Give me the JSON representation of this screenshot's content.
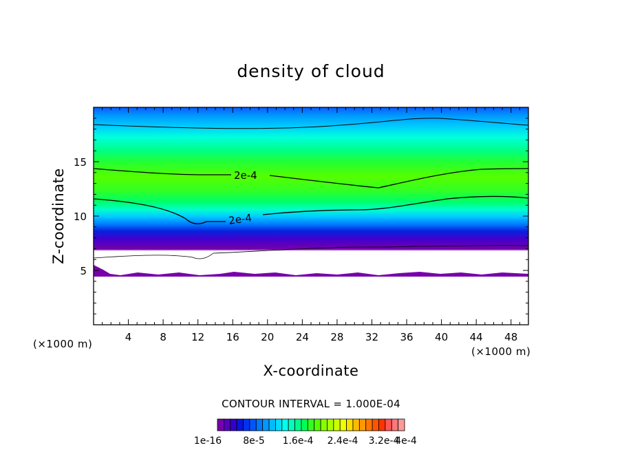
{
  "chart_data": {
    "type": "heatmap",
    "title": "density of cloud",
    "xlabel": "X-coordinate",
    "ylabel": "Z-coordinate",
    "x_unit": "(×1000 m)",
    "y_unit": "(×1000 m)",
    "xlim": [
      0,
      50
    ],
    "ylim": [
      0,
      20
    ],
    "x_ticks": [
      "4",
      "8",
      "12",
      "16",
      "20",
      "24",
      "28",
      "32",
      "36",
      "40",
      "44",
      "48"
    ],
    "y_ticks": [
      "5",
      "10",
      "15"
    ],
    "contour_interval_text": "CONTOUR INTERVAL = 1.000E-04",
    "colorbar": {
      "labels": [
        "1e-16",
        "8e-5",
        "1.6e-4",
        "2.4e-4",
        "3.2e-4",
        "4e-4"
      ],
      "colors": [
        "#7700aa",
        "#5500bb",
        "#3300cc",
        "#0a14dd",
        "#0033ee",
        "#0055ff",
        "#0077ff",
        "#0099ff",
        "#00bbff",
        "#00ddff",
        "#00ffee",
        "#00ffbb",
        "#00ff88",
        "#00ff55",
        "#33ff22",
        "#55ff00",
        "#88ff00",
        "#aaff00",
        "#ccff00",
        "#eeff00",
        "#ffdd00",
        "#ffbb00",
        "#ff9900",
        "#ff7700",
        "#ff5500",
        "#ff3300",
        "#ff5555",
        "#ff7777",
        "#ff9999"
      ]
    },
    "contour_labels": [
      "2e-4",
      "2e-4"
    ],
    "lower_cloud_boundary_km": 5,
    "upper_cloud_boundary_km": 20
  }
}
